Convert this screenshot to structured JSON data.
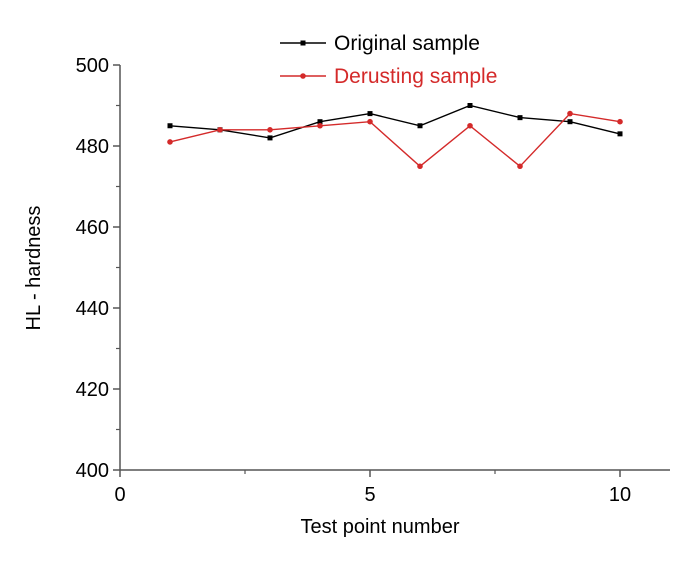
{
  "chart_data": {
    "type": "line",
    "title": "",
    "xlabel": "Test point number",
    "ylabel": "HL - hardness",
    "xlim": [
      0,
      11
    ],
    "ylim": [
      400,
      500
    ],
    "x_ticks": [
      0,
      5,
      10
    ],
    "y_ticks": [
      400,
      420,
      440,
      460,
      480,
      500
    ],
    "grid": false,
    "legend_position": "top-center",
    "series": [
      {
        "name": "Original sample",
        "color": "#000000",
        "x": [
          1,
          2,
          3,
          4,
          5,
          6,
          7,
          8,
          9,
          10
        ],
        "y": [
          485,
          484,
          482,
          486,
          488,
          485,
          490,
          487,
          486,
          483
        ]
      },
      {
        "name": "Derusting sample",
        "color": "#d42a2a",
        "x": [
          1,
          2,
          3,
          4,
          5,
          6,
          7,
          8,
          9,
          10
        ],
        "y": [
          481,
          484,
          484,
          485,
          486,
          475,
          485,
          475,
          488,
          486
        ]
      }
    ]
  }
}
